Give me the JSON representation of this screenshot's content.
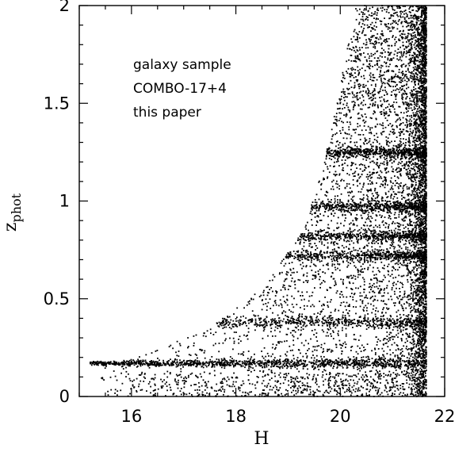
{
  "chart_data": {
    "type": "scatter",
    "xlabel": "H",
    "ylabel": "z",
    "ylabel_sub": "phot",
    "xlim": [
      15,
      22
    ],
    "ylim": [
      0,
      2
    ],
    "xticks": [
      16,
      18,
      20,
      22
    ],
    "xtick_labels": [
      "16",
      "18",
      "20",
      "22"
    ],
    "yticks": [
      0,
      0.5,
      1,
      1.5,
      2
    ],
    "ytick_labels": [
      "0",
      "0.5",
      "1",
      "1.5",
      "2"
    ],
    "xminor_step": 0.5,
    "yminor_step": 0.1,
    "grid": false,
    "legend_position": "top-left",
    "annotations": [
      "galaxy sample",
      "COMBO-17+4",
      "this paper"
    ],
    "point_color": "#000000",
    "distribution": {
      "h_max": 21.65,
      "dense_bands_z": [
        0.17,
        0.38,
        0.72,
        0.82,
        0.97,
        1.25
      ],
      "main_band": {
        "z": 0.17,
        "h_range": [
          15.2,
          21.6
        ]
      },
      "lower_envelope": [
        [
          15.4,
          0.17
        ],
        [
          16.5,
          0.25
        ],
        [
          17.5,
          0.35
        ],
        [
          18.5,
          0.55
        ],
        [
          19.3,
          0.85
        ],
        [
          19.7,
          1.2
        ],
        [
          20.0,
          1.6
        ],
        [
          20.3,
          2.0
        ]
      ]
    }
  }
}
